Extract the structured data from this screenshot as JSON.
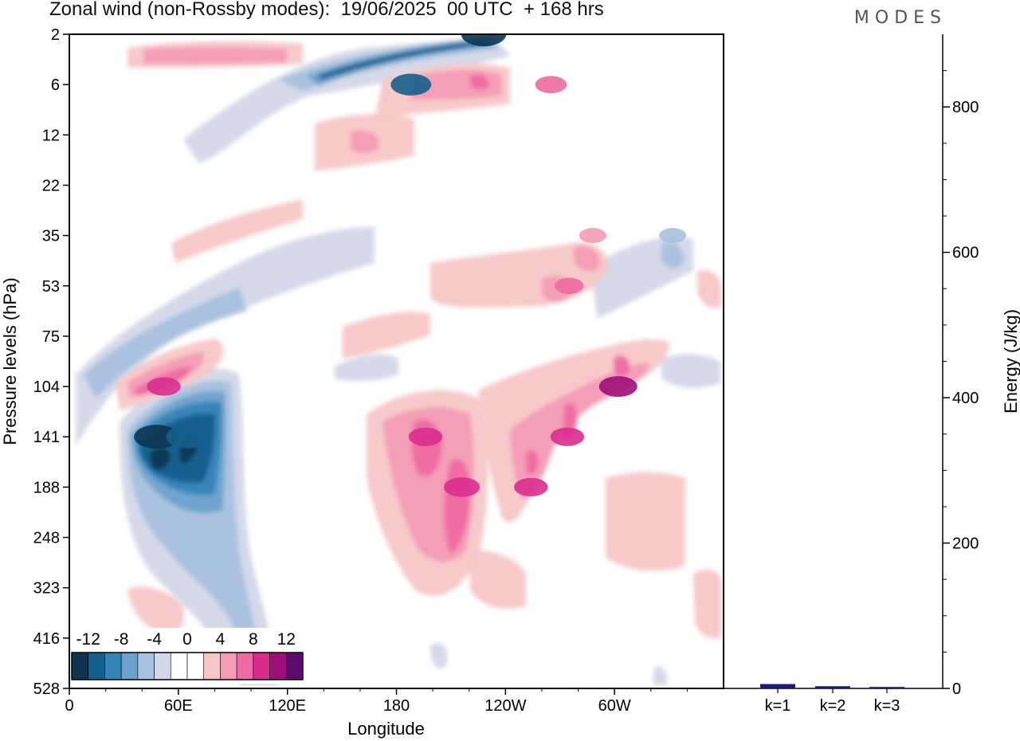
{
  "header": {
    "title": "Zonal wind (non-Rossby modes):  19/06/2025  00 UTC  + 168 hrs",
    "brand": "MODES"
  },
  "chart_data": [
    {
      "type": "heatmap",
      "title": "Zonal wind (non-Rossby modes):  19/06/2025  00 UTC  + 168 hrs",
      "xlabel": "Longitude",
      "ylabel": "Pressure levels (hPa)",
      "x_ticks": [
        "0",
        "60E",
        "120E",
        "180",
        "120W",
        "60W"
      ],
      "x_tick_degrees": [
        0,
        60,
        120,
        180,
        240,
        300
      ],
      "xlim": [
        0,
        360
      ],
      "y_ticks": [
        "2",
        "6",
        "12",
        "22",
        "35",
        "53",
        "75",
        "104",
        "141",
        "188",
        "248",
        "323",
        "416",
        "528"
      ],
      "colorbar": {
        "labels": [
          "-12",
          "-8",
          "-4",
          "0",
          "4",
          "8",
          "12"
        ],
        "levels": [
          -14,
          -12,
          -10,
          -8,
          -6,
          -4,
          -2,
          0,
          2,
          4,
          6,
          8,
          10,
          12,
          14
        ],
        "colors": [
          "#0d3552",
          "#155f8e",
          "#3584b8",
          "#6ba2cc",
          "#a9c1de",
          "#d3d7e8",
          "#ffffff",
          "#ffffff",
          "#f8c6c6",
          "#f49cb6",
          "#ee6aa2",
          "#d92d8e",
          "#9e1078",
          "#5c0a6b"
        ]
      },
      "features": [
        {
          "lon": 228,
          "level": "2",
          "value": -13
        },
        {
          "lon": 188,
          "level": "6",
          "value": -11
        },
        {
          "lon": 265,
          "level": "6",
          "value": 7
        },
        {
          "lon": 48,
          "level": "141",
          "value": -13
        },
        {
          "lon": 65,
          "level": "141",
          "value": -12
        },
        {
          "lon": 52,
          "level": "104",
          "value": 8
        },
        {
          "lon": 196,
          "level": "141",
          "value": 8
        },
        {
          "lon": 216,
          "level": "188",
          "value": 9
        },
        {
          "lon": 254,
          "level": "188",
          "value": 8
        },
        {
          "lon": 274,
          "level": "141",
          "value": 8
        },
        {
          "lon": 302,
          "level": "104",
          "value": 10
        },
        {
          "lon": 275,
          "level": "53",
          "value": 6
        },
        {
          "lon": 288,
          "level": "35",
          "value": 5
        },
        {
          "lon": 332,
          "level": "35",
          "value": -5
        }
      ]
    },
    {
      "type": "bar",
      "categories": [
        "k=1",
        "k=2",
        "k=3"
      ],
      "values": [
        6,
        3,
        2
      ],
      "ylabel": "Energy (J/kg)",
      "ylim": [
        0,
        900
      ],
      "y_ticks": [
        "0",
        "200",
        "400",
        "600",
        "800"
      ],
      "color": "#1a1a7a"
    }
  ]
}
